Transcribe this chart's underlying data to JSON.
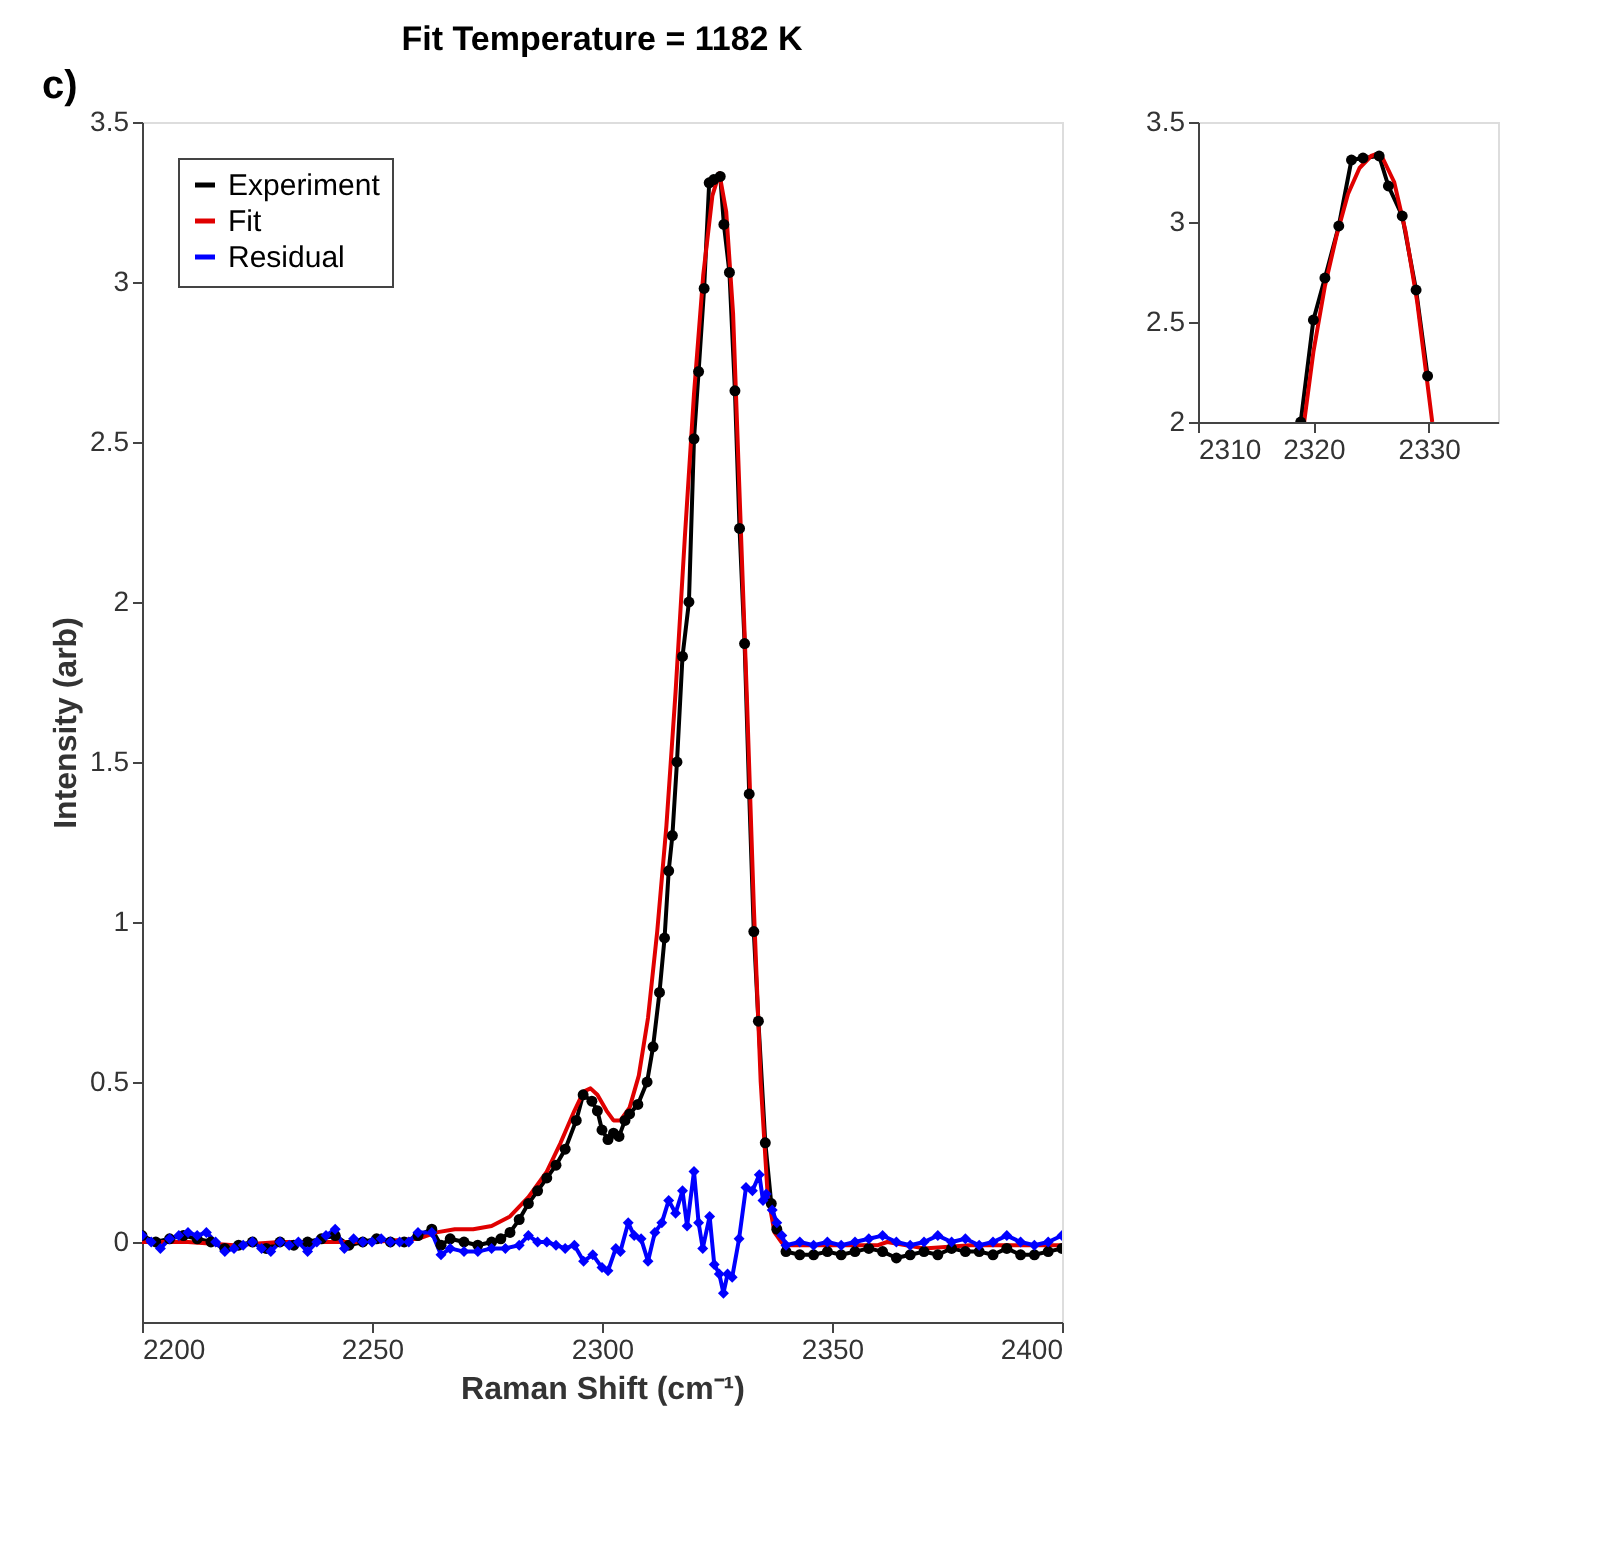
{
  "chart_data": [
    {
      "type": "line",
      "title": "Fit Temperature = 1182 K",
      "xlabel": "Raman Shift (cm⁻¹)",
      "ylabel": "Intensity (arb)",
      "annotations": [
        "c)"
      ],
      "xlim": [
        2200,
        2400
      ],
      "xticks": [
        2200,
        2250,
        2300,
        2350,
        2400
      ],
      "ylim": [
        -0.25,
        3.5
      ],
      "yticks": [
        0,
        0.5,
        1,
        1.5,
        2,
        2.5,
        3,
        3.5
      ],
      "grid": false,
      "legend": "top left",
      "series": [
        {
          "name": "Experiment",
          "color": "#000000",
          "marker": "circle",
          "x": [
            2200,
            2203,
            2206,
            2209,
            2212,
            2215,
            2218,
            2221,
            2224,
            2227,
            2230,
            2233,
            2236,
            2239,
            2242,
            2245,
            2248,
            2251,
            2254,
            2257,
            2260,
            2263,
            2265,
            2267,
            2270,
            2273,
            2276,
            2278,
            2280,
            2282,
            2284,
            2286,
            2288,
            2290,
            2292,
            2294.4,
            2295.9,
            2297.8,
            2299,
            2300,
            2301.3,
            2302.5,
            2303.7,
            2305,
            2306,
            2307.8,
            2309.8,
            2311.1,
            2312.5,
            2313.6,
            2314.5,
            2315.3,
            2316.3,
            2317.5,
            2318.9,
            2320,
            2321,
            2322.2,
            2323.3,
            2324.3,
            2325.7,
            2326.5,
            2327.7,
            2328.9,
            2329.9,
            2331,
            2332,
            2333,
            2334,
            2335.5,
            2336.8,
            2338,
            2340,
            2343,
            2346,
            2349,
            2352,
            2355,
            2358,
            2361,
            2364,
            2367,
            2370,
            2373,
            2376,
            2379,
            2382,
            2385,
            2388,
            2391,
            2394,
            2397,
            2400
          ],
          "values": [
            0.02,
            0.0,
            0.01,
            0.02,
            0.01,
            0.0,
            -0.02,
            -0.01,
            0.0,
            -0.02,
            0.0,
            -0.01,
            0.0,
            0.01,
            0.02,
            -0.01,
            0.0,
            0.01,
            0.0,
            0.0,
            0.02,
            0.04,
            -0.01,
            0.01,
            0.0,
            -0.01,
            0.0,
            0.01,
            0.03,
            0.07,
            0.12,
            0.16,
            0.2,
            0.24,
            0.29,
            0.38,
            0.46,
            0.44,
            0.41,
            0.35,
            0.32,
            0.34,
            0.33,
            0.38,
            0.4,
            0.43,
            0.5,
            0.61,
            0.78,
            0.95,
            1.16,
            1.27,
            1.5,
            1.83,
            2.0,
            2.51,
            2.72,
            2.98,
            3.31,
            3.32,
            3.33,
            3.18,
            3.03,
            2.66,
            2.23,
            1.87,
            1.4,
            0.97,
            0.69,
            0.31,
            0.12,
            0.04,
            -0.03,
            -0.04,
            -0.04,
            -0.03,
            -0.04,
            -0.03,
            -0.02,
            -0.03,
            -0.05,
            -0.04,
            -0.03,
            -0.04,
            -0.02,
            -0.03,
            -0.03,
            -0.04,
            -0.02,
            -0.04,
            -0.04,
            -0.03,
            -0.02
          ]
        },
        {
          "name": "Fit",
          "color": "#e00000",
          "marker": "none",
          "x": [
            2200,
            2210,
            2220,
            2230,
            2240,
            2250,
            2260,
            2264,
            2268,
            2272,
            2276,
            2280,
            2284,
            2288,
            2291,
            2294,
            2296,
            2297.5,
            2299,
            2301,
            2302.5,
            2304,
            2306,
            2308,
            2310,
            2312,
            2314,
            2316,
            2318,
            2320,
            2322,
            2324,
            2325.5,
            2327,
            2328.5,
            2330,
            2331.5,
            2333,
            2334.5,
            2336,
            2337.5,
            2339,
            2340,
            2350,
            2360,
            2362,
            2370,
            2380,
            2390,
            2400
          ],
          "values": [
            0,
            0,
            -0.01,
            0,
            0,
            0,
            0.01,
            0.03,
            0.04,
            0.04,
            0.05,
            0.08,
            0.14,
            0.22,
            0.31,
            0.41,
            0.47,
            0.48,
            0.46,
            0.41,
            0.38,
            0.38,
            0.42,
            0.52,
            0.7,
            0.97,
            1.3,
            1.72,
            2.2,
            2.65,
            3.02,
            3.27,
            3.34,
            3.22,
            2.9,
            2.3,
            1.7,
            1.05,
            0.5,
            0.15,
            0.03,
            0.0,
            -0.01,
            -0.01,
            -0.01,
            0.0,
            -0.02,
            -0.01,
            -0.01,
            -0.01
          ]
        },
        {
          "name": "Residual",
          "color": "#0000ff",
          "marker": "diamond",
          "x": [
            2200,
            2202,
            2204,
            2206,
            2208,
            2210,
            2212,
            2214,
            2216,
            2218,
            2220,
            2222,
            2224,
            2226,
            2228,
            2230,
            2232,
            2234,
            2236,
            2238,
            2240,
            2242,
            2244,
            2246,
            2248,
            2250,
            2252,
            2254,
            2256,
            2258,
            2260,
            2263,
            2265,
            2267,
            2270,
            2273,
            2276,
            2279,
            2282,
            2284,
            2286,
            2288,
            2290,
            2292,
            2294,
            2296,
            2298,
            2300,
            2301.3,
            2303,
            2304,
            2305.7,
            2307,
            2308.5,
            2310,
            2311.5,
            2313,
            2314.5,
            2316,
            2317.5,
            2318.5,
            2320,
            2321,
            2321.9,
            2323.4,
            2324.4,
            2325.5,
            2326.4,
            2327.3,
            2328.3,
            2329.8,
            2331.3,
            2332.7,
            2334.2,
            2335,
            2335.7,
            2337,
            2338,
            2339.1,
            2340,
            2343,
            2346,
            2349,
            2352,
            2355,
            2358,
            2361,
            2364,
            2367,
            2370,
            2373,
            2376,
            2379,
            2382,
            2385,
            2388,
            2391,
            2394,
            2397,
            2400
          ],
          "values": [
            0.02,
            0.0,
            -0.02,
            0.01,
            0.02,
            0.03,
            0.02,
            0.03,
            0.0,
            -0.03,
            -0.02,
            -0.01,
            0.0,
            -0.02,
            -0.03,
            0.0,
            -0.01,
            0.0,
            -0.03,
            0.0,
            0.02,
            0.04,
            -0.02,
            0.01,
            0.0,
            0.0,
            0.01,
            0.0,
            0.0,
            0.0,
            0.03,
            0.03,
            -0.04,
            -0.02,
            -0.03,
            -0.03,
            -0.02,
            -0.02,
            -0.01,
            0.02,
            0.0,
            0.0,
            -0.01,
            -0.02,
            -0.01,
            -0.06,
            -0.04,
            -0.08,
            -0.09,
            -0.02,
            -0.03,
            0.06,
            0.02,
            0.01,
            -0.06,
            0.03,
            0.06,
            0.13,
            0.09,
            0.16,
            0.05,
            0.22,
            0.06,
            -0.02,
            0.08,
            -0.07,
            -0.1,
            -0.16,
            -0.1,
            -0.11,
            0.01,
            0.17,
            0.16,
            0.21,
            0.13,
            0.15,
            0.1,
            0.06,
            0.02,
            -0.01,
            0.0,
            -0.01,
            0.0,
            -0.01,
            0.0,
            0.01,
            0.02,
            0.0,
            -0.01,
            0.0,
            0.02,
            0.0,
            0.01,
            -0.01,
            0.0,
            0.02,
            0.0,
            -0.01,
            0.0,
            0.02
          ]
        }
      ]
    },
    {
      "type": "line",
      "xlim": [
        2310,
        2336
      ],
      "xticks": [
        2310,
        2320,
        2330
      ],
      "ylim": [
        2,
        3.5
      ],
      "yticks": [
        2,
        2.5,
        3,
        3.5
      ],
      "grid": false,
      "series": [
        {
          "color": "#000000",
          "marker": "circle",
          "x": [
            2318.9,
            2320,
            2321,
            2322.2,
            2323.3,
            2324.3,
            2325.7,
            2326.5,
            2327.7,
            2328.9,
            2329.9
          ],
          "values": [
            2.0,
            2.51,
            2.72,
            2.98,
            3.31,
            3.32,
            3.33,
            3.18,
            3.03,
            2.66,
            2.23
          ]
        },
        {
          "color": "#e00000",
          "marker": "none",
          "x": [
            2319.2,
            2320,
            2321,
            2322,
            2323,
            2324,
            2325,
            2325.5,
            2326,
            2327,
            2328,
            2329,
            2330.3
          ],
          "values": [
            2.0,
            2.35,
            2.68,
            2.93,
            3.14,
            3.27,
            3.33,
            3.34,
            3.32,
            3.2,
            2.95,
            2.6,
            2.0
          ]
        }
      ]
    }
  ]
}
